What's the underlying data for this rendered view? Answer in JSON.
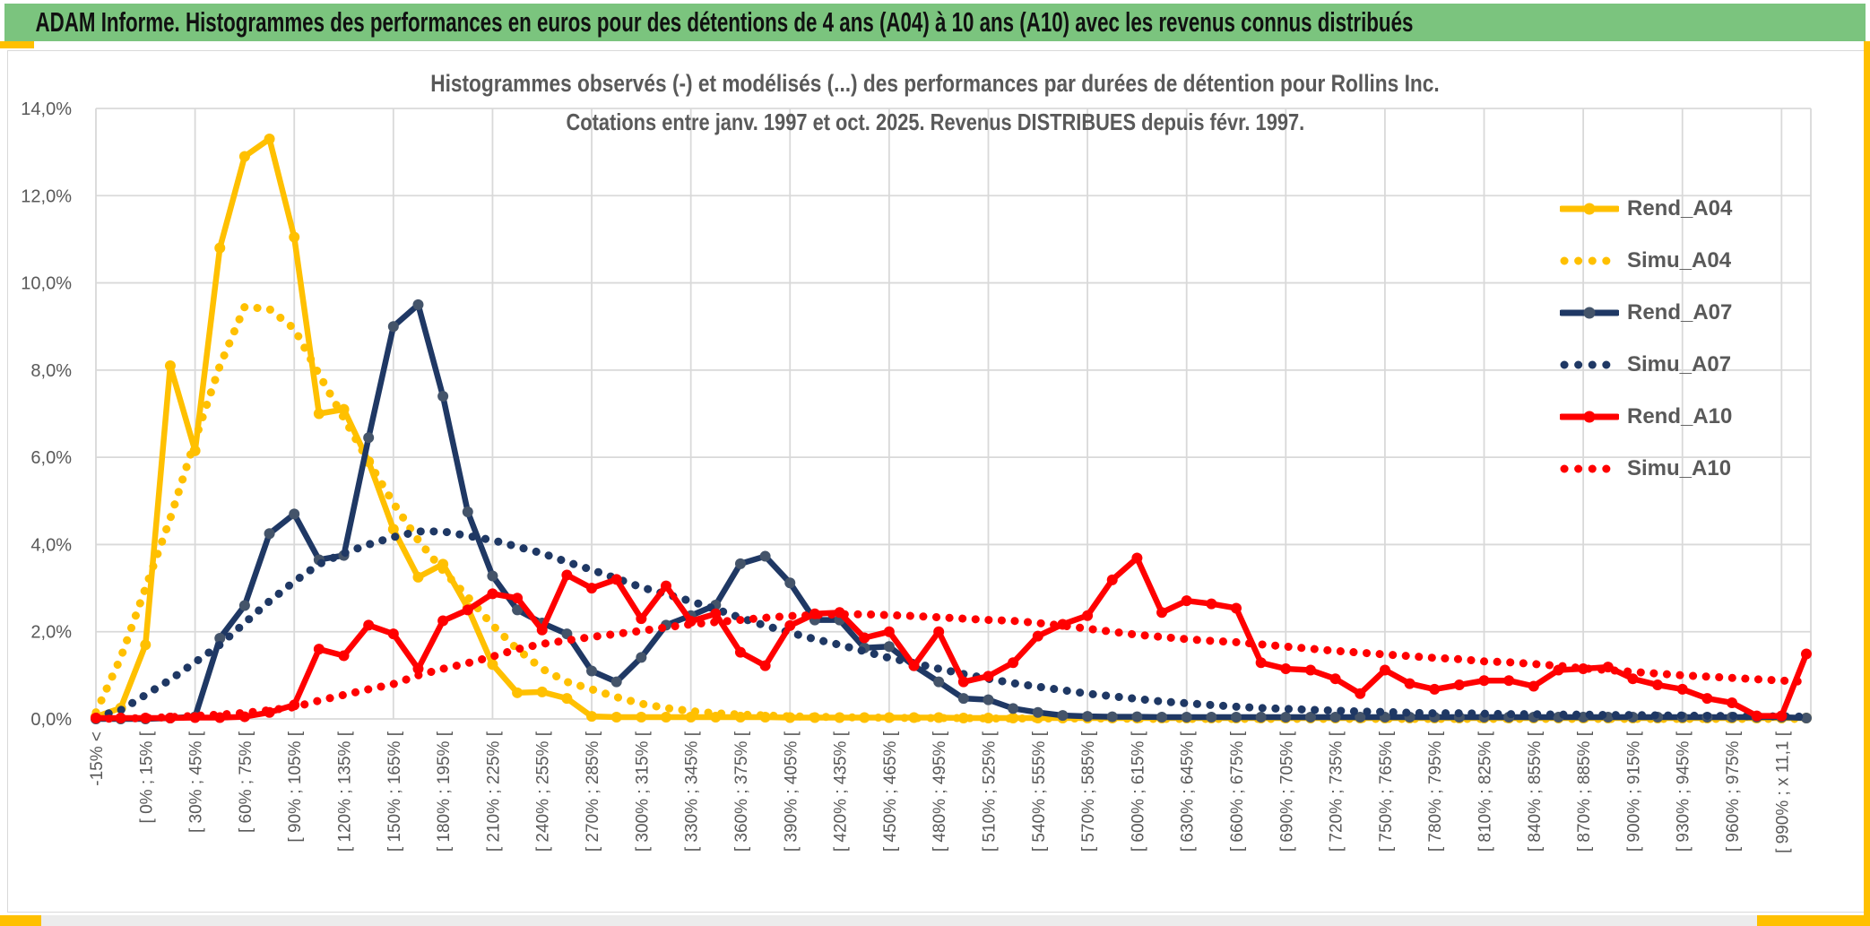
{
  "window": {
    "header_title": "ADAM Informe. Histogrammes des performances en euros pour des détentions de 4 ans (A04) à 10 ans (A10) avec les revenus connus distribués"
  },
  "chart": {
    "title_line1": "Histogrammes observés (-) et modélisés (...) des performances par durées de détention pour Rollins Inc.",
    "title_line2": "Cotations entre janv. 1997 et oct. 2025. Revenus DISTRIBUES depuis févr. 1997.",
    "y_axis": {
      "tick_labels": [
        "0,0%",
        "2,0%",
        "4,0%",
        "6,0%",
        "8,0%",
        "10,0%",
        "12,0%",
        "14,0%"
      ],
      "min": 0,
      "max": 14,
      "step": 2
    },
    "legend": [
      {
        "label": "Rend_A04",
        "color": "#FFC000",
        "marker_color": "#FFC000",
        "style": "solid"
      },
      {
        "label": "Simu_A04",
        "color": "#FFC000",
        "marker_color": "#FFC000",
        "style": "dotted"
      },
      {
        "label": "Rend_A07",
        "color": "#1F3864",
        "marker_color": "#44546A",
        "style": "solid"
      },
      {
        "label": "Simu_A07",
        "color": "#1F3864",
        "marker_color": "#1F3864",
        "style": "dotted"
      },
      {
        "label": "Rend_A10",
        "color": "#FF0000",
        "marker_color": "#FF0000",
        "style": "solid"
      },
      {
        "label": "Simu_A10",
        "color": "#FF0000",
        "marker_color": "#FF0000",
        "style": "dotted"
      }
    ],
    "colors": {
      "grid": "#D9D9D9",
      "axis_text": "#595959",
      "title_text": "#595959",
      "header_green": "#7BC47E",
      "accent_gold": "#FFC000"
    }
  },
  "chart_data": {
    "type": "line",
    "title": "Histogrammes observés (-) et modélisés (...) des performances par durées de détention pour Rollins Inc.",
    "subtitle": "Cotations entre janv. 1997 et oct. 2025. Revenus DISTRIBUES depuis févr. 1997.",
    "ylabel": "",
    "xlabel": "",
    "ylim": [
      0,
      14
    ],
    "grid": true,
    "legend_position": "right",
    "bin_width_pct": 15,
    "points_per_label": 2,
    "x_bin_labels": [
      "-15% <",
      "[ 0% ; 15% [",
      "[ 30% ; 45% [",
      "[ 60% ; 75% [",
      "[ 90% ; 105% [",
      "[ 120% ; 135% [",
      "[ 150% ; 165% [",
      "[ 180% ; 195% [",
      "[ 210% ; 225% [",
      "[ 240% ; 255% [",
      "[ 270% ; 285% [",
      "[ 300% ; 315% [",
      "[ 330% ; 345% [",
      "[ 360% ; 375% [",
      "[ 390% ; 405% [",
      "[ 420% ; 435% [",
      "[ 450% ; 465% [",
      "[ 480% ; 495% [",
      "[ 510% ; 525% [",
      "[ 540% ; 555% [",
      "[ 570% ; 585% [",
      "[ 600% ; 615% [",
      "[ 630% ; 645% [",
      "[ 660% ; 675% [",
      "[ 690% ; 705% [",
      "[ 720% ; 735% [",
      "[ 750% ; 765% [",
      "[ 780% ; 795% [",
      "[ 810% ; 825% [",
      "[ 840% ; 855% [",
      "[ 870% ; 885% [",
      "[ 900% ; 915% [",
      "[ 930% ; 945% [",
      "[ 960% ; 975% [",
      "[ 990% ; x 11,1 ["
    ],
    "series": [
      {
        "name": "Rend_A04",
        "style": "solid",
        "color": "#FFC000",
        "marker_color": "#FFC000",
        "values": [
          0.05,
          0.25,
          1.7,
          8.1,
          6.15,
          10.8,
          12.9,
          13.3,
          11.05,
          7.0,
          7.1,
          5.9,
          4.35,
          3.25,
          3.55,
          2.55,
          1.25,
          0.6,
          0.62,
          0.47,
          0.06,
          0.04,
          0.04,
          0.04,
          0.04,
          0.04,
          0.04,
          0.04,
          0.03,
          0.03,
          0.03,
          0.03,
          0.03,
          0.03,
          0.03,
          0.02,
          0.02,
          0.02,
          0.02,
          0.02,
          0.02,
          0.02,
          0.02,
          0.02,
          0.02,
          0.02,
          0.02,
          0.02,
          0.02,
          0.02,
          0.02,
          0.02,
          0.02,
          0.02,
          0.02,
          0.02,
          0.02,
          0.02,
          0.02,
          0.02,
          0.02,
          0.02,
          0.02,
          0.02,
          0.02,
          0.02,
          0.02,
          0.02,
          0.02,
          0.02
        ]
      },
      {
        "name": "Simu_A04",
        "style": "dotted",
        "color": "#FFC000",
        "marker_color": "#FFC000",
        "values": [
          0.15,
          1.4,
          3.0,
          4.6,
          6.4,
          8.1,
          9.45,
          9.4,
          8.95,
          7.9,
          6.9,
          5.9,
          4.95,
          4.1,
          3.4,
          2.8,
          2.15,
          1.6,
          1.15,
          0.85,
          0.68,
          0.5,
          0.35,
          0.25,
          0.18,
          0.13,
          0.1,
          0.08,
          0.06,
          0.05,
          0.04,
          0.03,
          0.03,
          0.02,
          0.02,
          0.02,
          0.01,
          0.01,
          0.01,
          0.01,
          0.01,
          0.01,
          0,
          0,
          0,
          0,
          0,
          0,
          0,
          0,
          0,
          0,
          0,
          0,
          0,
          0,
          0,
          0,
          0,
          0,
          0,
          0,
          0,
          0,
          0,
          0,
          0,
          0,
          0,
          0
        ]
      },
      {
        "name": "Rend_A07",
        "style": "solid",
        "color": "#1F3864",
        "marker_color": "#44546A",
        "values": [
          0,
          0,
          0,
          0.02,
          0.05,
          1.85,
          2.6,
          4.25,
          4.7,
          3.65,
          3.75,
          6.45,
          9.0,
          9.5,
          7.4,
          4.75,
          3.28,
          2.5,
          2.2,
          1.95,
          1.1,
          0.85,
          1.41,
          2.15,
          2.37,
          2.61,
          3.56,
          3.73,
          3.12,
          2.27,
          2.27,
          1.63,
          1.66,
          1.22,
          0.85,
          0.47,
          0.44,
          0.24,
          0.15,
          0.08,
          0.06,
          0.05,
          0.05,
          0.04,
          0.04,
          0.04,
          0.04,
          0.04,
          0.04,
          0.04,
          0.04,
          0.04,
          0.04,
          0.04,
          0.04,
          0.04,
          0.04,
          0.04,
          0.04,
          0.04,
          0.04,
          0.04,
          0.04,
          0.04,
          0.04,
          0.04,
          0.04,
          0.04,
          0.04,
          0.02
        ]
      },
      {
        "name": "Simu_A07",
        "style": "dotted",
        "color": "#1F3864",
        "marker_color": "#1F3864",
        "values": [
          0.05,
          0.2,
          0.55,
          0.9,
          1.3,
          1.7,
          2.2,
          2.7,
          3.15,
          3.55,
          3.8,
          4.0,
          4.17,
          4.3,
          4.3,
          4.2,
          4.1,
          3.95,
          3.8,
          3.6,
          3.42,
          3.22,
          3.02,
          2.86,
          2.7,
          2.52,
          2.32,
          2.14,
          1.98,
          1.83,
          1.7,
          1.55,
          1.4,
          1.28,
          1.15,
          1.03,
          0.92,
          0.82,
          0.74,
          0.66,
          0.58,
          0.52,
          0.46,
          0.4,
          0.36,
          0.32,
          0.28,
          0.25,
          0.23,
          0.21,
          0.19,
          0.17,
          0.16,
          0.14,
          0.13,
          0.13,
          0.12,
          0.11,
          0.11,
          0.1,
          0.1,
          0.09,
          0.09,
          0.08,
          0.08,
          0.07,
          0.07,
          0.06,
          0.06,
          0.05
        ]
      },
      {
        "name": "Rend_A10",
        "style": "solid",
        "color": "#FF0000",
        "marker_color": "#FF0000",
        "values": [
          0.02,
          0.02,
          0.02,
          0.02,
          0.03,
          0.03,
          0.05,
          0.15,
          0.32,
          1.6,
          1.45,
          2.15,
          1.95,
          1.15,
          2.25,
          2.5,
          2.87,
          2.77,
          2.04,
          3.3,
          3.0,
          3.2,
          2.3,
          3.05,
          2.24,
          2.41,
          1.53,
          1.22,
          2.14,
          2.41,
          2.44,
          1.86,
          2.0,
          1.22,
          2.0,
          0.85,
          0.98,
          1.29,
          1.9,
          2.17,
          2.37,
          3.19,
          3.69,
          2.44,
          2.71,
          2.64,
          2.54,
          1.29,
          1.15,
          1.12,
          0.92,
          0.58,
          1.12,
          0.81,
          0.68,
          0.78,
          0.88,
          0.88,
          0.75,
          1.12,
          1.15,
          1.19,
          0.92,
          0.78,
          0.68,
          0.47,
          0.37,
          0.07,
          0.07,
          1.49
        ]
      },
      {
        "name": "Simu_A10",
        "style": "dotted",
        "color": "#FF0000",
        "marker_color": "#FF0000",
        "values": [
          0,
          0.01,
          0.02,
          0.04,
          0.07,
          0.1,
          0.14,
          0.2,
          0.27,
          0.42,
          0.55,
          0.68,
          0.8,
          1.0,
          1.15,
          1.28,
          1.43,
          1.6,
          1.72,
          1.8,
          1.88,
          1.95,
          2.02,
          2.1,
          2.17,
          2.22,
          2.27,
          2.32,
          2.36,
          2.38,
          2.4,
          2.4,
          2.38,
          2.36,
          2.33,
          2.3,
          2.27,
          2.25,
          2.2,
          2.14,
          2.07,
          2.0,
          1.93,
          1.88,
          1.83,
          1.79,
          1.76,
          1.71,
          1.66,
          1.61,
          1.56,
          1.52,
          1.48,
          1.44,
          1.4,
          1.37,
          1.32,
          1.3,
          1.26,
          1.22,
          1.16,
          1.12,
          1.08,
          1.04,
          1.0,
          0.97,
          0.94,
          0.91,
          0.88,
          0.85
        ]
      }
    ]
  }
}
